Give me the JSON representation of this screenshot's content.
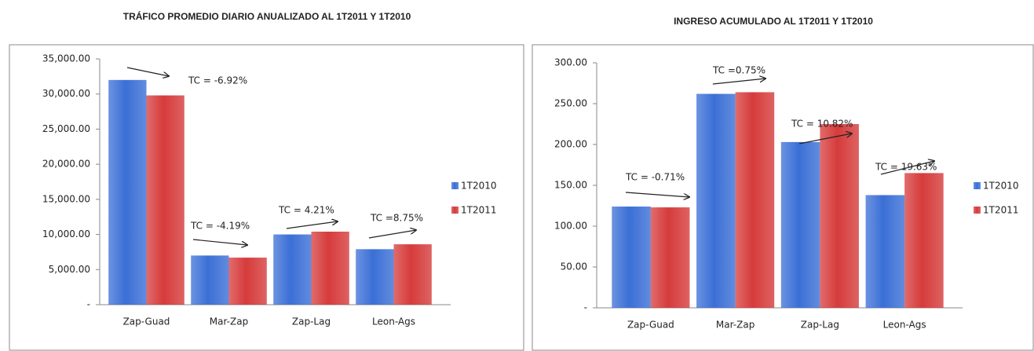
{
  "chart_data": [
    {
      "type": "bar",
      "title": "TRÁFICO PROMEDIO DIARIO ANUALIZADO AL 1T2011 Y 1T2010",
      "categories": [
        "Zap-Guad",
        "Mar-Zap",
        "Zap-Lag",
        "Leon-Ags"
      ],
      "series": [
        {
          "name": "1T2010",
          "color": "#3b6fd6",
          "values": [
            32000,
            7000,
            10000,
            7900
          ]
        },
        {
          "name": "1T2011",
          "color": "#d63b3b",
          "values": [
            29800,
            6700,
            10400,
            8600
          ]
        }
      ],
      "annotations": [
        "TC = -6.92%",
        "TC = -4.19%",
        "TC = 4.21%",
        "TC =8.75%"
      ],
      "ylim": [
        0,
        35000
      ],
      "yticks": [
        {
          "value": 0,
          "label": "-"
        },
        {
          "value": 5000,
          "label": "5,000.00"
        },
        {
          "value": 10000,
          "label": "10,000.00"
        },
        {
          "value": 15000,
          "label": "15,000.00"
        },
        {
          "value": 20000,
          "label": "20,000.00"
        },
        {
          "value": 25000,
          "label": "25,000.00"
        },
        {
          "value": 30000,
          "label": "30,000.00"
        },
        {
          "value": 35000,
          "label": "35,000.00"
        }
      ],
      "legend": "right"
    },
    {
      "type": "bar",
      "title": "INGRESO ACUMULADO AL 1T2011 Y 1T2010",
      "categories": [
        "Zap-Guad",
        "Mar-Zap",
        "Zap-Lag",
        "Leon-Ags"
      ],
      "series": [
        {
          "name": "1T2010",
          "color": "#3b6fd6",
          "values": [
            124,
            262,
            203,
            138
          ]
        },
        {
          "name": "1T2011",
          "color": "#d63b3b",
          "values": [
            123,
            264,
            225,
            165
          ]
        }
      ],
      "annotations": [
        "TC = -0.71%",
        "TC =0.75%",
        "TC = 10.82%",
        "TC = 19.63%"
      ],
      "ylim": [
        0,
        300
      ],
      "yticks": [
        {
          "value": 0,
          "label": "-"
        },
        {
          "value": 50,
          "label": "50.00"
        },
        {
          "value": 100,
          "label": "100.00"
        },
        {
          "value": 150,
          "label": "150.00"
        },
        {
          "value": 200,
          "label": "200.00"
        },
        {
          "value": 250,
          "label": "250.00"
        },
        {
          "value": 300,
          "label": "300.00"
        }
      ],
      "legend": "right"
    }
  ]
}
